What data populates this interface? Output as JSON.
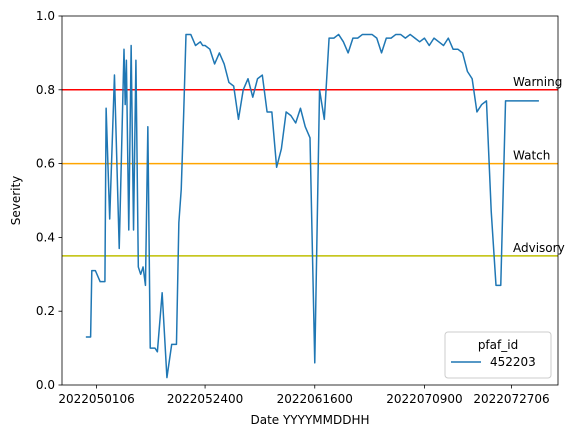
{
  "chart_data": {
    "type": "line",
    "title": "",
    "xlabel": "Date YYYYMMDDHH",
    "ylabel": "Severity",
    "xlim": [
      2022042400,
      2022080600
    ],
    "ylim": [
      0,
      1
    ],
    "x_ticks": [
      2022050106,
      2022052400,
      2022061600,
      2022070900,
      2022072706
    ],
    "x_tick_labels": [
      "2022050106",
      "2022052400",
      "2022061600",
      "2022070900",
      "2022072706"
    ],
    "y_ticks": [
      0.0,
      0.2,
      0.4,
      0.6,
      0.8,
      1.0
    ],
    "y_tick_labels": [
      "0.0",
      "0.2",
      "0.4",
      "0.6",
      "0.8",
      "1.0"
    ],
    "grid": false,
    "legend": {
      "title": "pfaf_id",
      "position": "lower-right",
      "entries": [
        "452203"
      ]
    },
    "thresholds": [
      {
        "label": "Warning",
        "value": 0.8,
        "color": "#ff0000"
      },
      {
        "label": "Watch",
        "value": 0.6,
        "color": "#ffa500"
      },
      {
        "label": "Advisory",
        "value": 0.35,
        "color": "#bfbf00"
      }
    ],
    "series": [
      {
        "name": "452203",
        "color": "#1f77b4",
        "x": [
          2022042900,
          2022043000,
          2022043006,
          2022050100,
          2022050200,
          2022050300,
          2022050306,
          2022050400,
          2022050500,
          2022050600,
          2022050700,
          2022050706,
          2022050712,
          2022050800,
          2022050812,
          2022050900,
          2022050912,
          2022051000,
          2022051012,
          2022051100,
          2022051112,
          2022051200,
          2022051212,
          2022051300,
          2022051312,
          2022051400,
          2022051500,
          2022051600,
          2022051700,
          2022051800,
          2022051812,
          2022051900,
          2022051912,
          2022052000,
          2022052100,
          2022052200,
          2022052300,
          2022052312,
          2022052400,
          2022052500,
          2022052600,
          2022052700,
          2022052800,
          2022052900,
          2022053000,
          2022053100,
          2022060100,
          2022060200,
          2022060300,
          2022060400,
          2022060500,
          2022060600,
          2022060700,
          2022060800,
          2022060900,
          2022061000,
          2022061100,
          2022061200,
          2022061300,
          2022061400,
          2022061500,
          2022061600,
          2022061700,
          2022061800,
          2022061900,
          2022062000,
          2022062100,
          2022062200,
          2022062300,
          2022062400,
          2022062500,
          2022062600,
          2022062700,
          2022062800,
          2022062900,
          2022063000,
          2022070100,
          2022070200,
          2022070300,
          2022070400,
          2022070500,
          2022070600,
          2022070700,
          2022070800,
          2022070900,
          2022071000,
          2022071100,
          2022071200,
          2022071300,
          2022071400,
          2022071500,
          2022071600,
          2022071700,
          2022071800,
          2022071900,
          2022072000,
          2022072100,
          2022072200,
          2022072300,
          2022072400,
          2022072500,
          2022072600,
          2022072700,
          2022072800,
          2022072900,
          2022073000,
          2022073100,
          2022080100,
          2022080200
        ],
        "y": [
          0.13,
          0.13,
          0.31,
          0.31,
          0.28,
          0.28,
          0.75,
          0.45,
          0.84,
          0.37,
          0.91,
          0.76,
          0.88,
          0.42,
          0.92,
          0.42,
          0.88,
          0.32,
          0.3,
          0.32,
          0.27,
          0.7,
          0.1,
          0.1,
          0.1,
          0.09,
          0.25,
          0.02,
          0.11,
          0.11,
          0.44,
          0.53,
          0.73,
          0.95,
          0.95,
          0.92,
          0.93,
          0.92,
          0.92,
          0.91,
          0.87,
          0.9,
          0.87,
          0.82,
          0.81,
          0.72,
          0.8,
          0.83,
          0.78,
          0.83,
          0.84,
          0.74,
          0.74,
          0.59,
          0.64,
          0.74,
          0.73,
          0.71,
          0.75,
          0.7,
          0.67,
          0.06,
          0.8,
          0.72,
          0.94,
          0.94,
          0.95,
          0.93,
          0.9,
          0.94,
          0.94,
          0.95,
          0.95,
          0.95,
          0.94,
          0.9,
          0.94,
          0.94,
          0.95,
          0.95,
          0.94,
          0.95,
          0.94,
          0.93,
          0.94,
          0.92,
          0.94,
          0.93,
          0.92,
          0.94,
          0.91,
          0.91,
          0.9,
          0.85,
          0.83,
          0.74,
          0.76,
          0.77,
          0.47,
          0.27,
          0.27,
          0.77,
          0.77,
          0.77,
          0.77,
          0.77,
          0.77,
          0.77,
          0.77
        ]
      }
    ]
  }
}
